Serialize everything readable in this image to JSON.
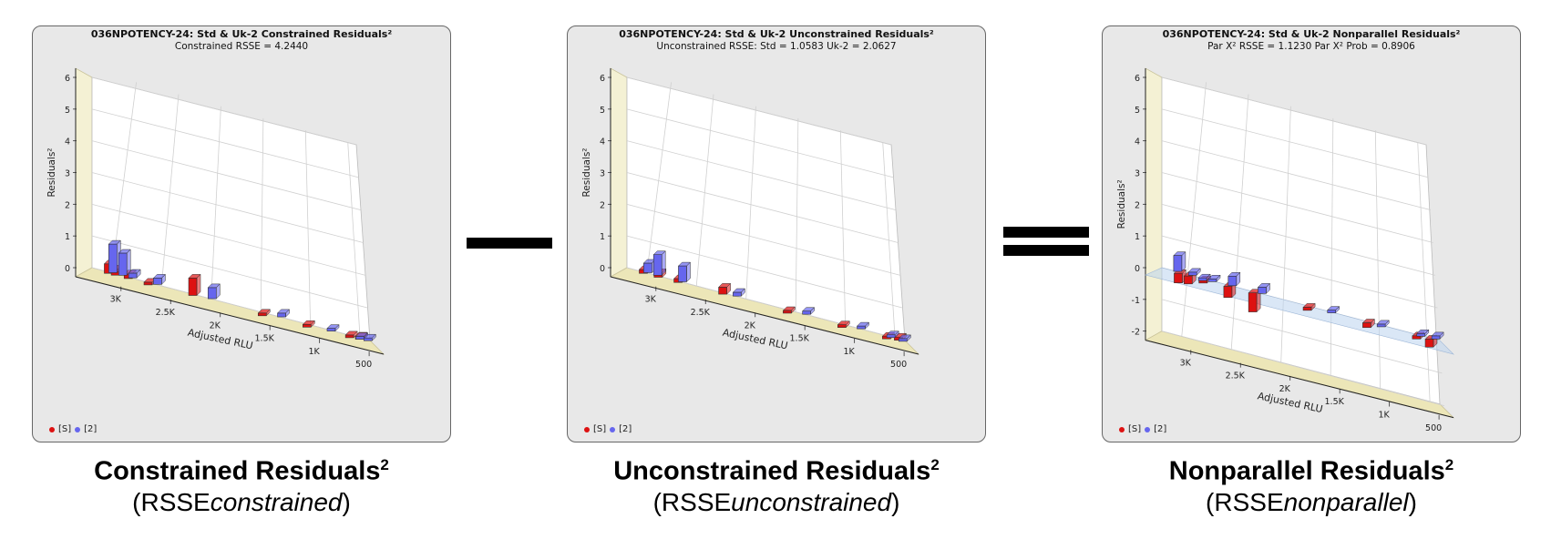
{
  "panels": [
    {
      "title": "036NPOTENCY-24: Std & Uk-2  Constrained Residuals²",
      "subtitle": "Constrained RSSE = 4.2440",
      "ylabel": "Residuals²",
      "xlabel": "Adjusted RLU",
      "legend": [
        "[S]",
        "[2]"
      ],
      "caption_main": "Constrained Residuals",
      "caption_sup": "2",
      "caption_paren_open": "(RSSE",
      "caption_italic": "constrained",
      "caption_paren_close": ")"
    },
    {
      "title": "036NPOTENCY-24: Std & Uk-2  Unconstrained Residuals²",
      "subtitle": "Unconstrained RSSE: Std = 1.0583  Uk-2 = 2.0627",
      "ylabel": "Residuals²",
      "xlabel": "Adjusted RLU",
      "legend": [
        "[S]",
        "[2]"
      ],
      "caption_main": "Unconstrained Residuals",
      "caption_sup": "2",
      "caption_paren_open": "(RSSE",
      "caption_italic": "unconstrained",
      "caption_paren_close": ")"
    },
    {
      "title": "036NPOTENCY-24: Std & Uk-2  Nonparallel Residuals²",
      "subtitle": "Par X² RSSE = 1.1230 Par X² Prob = 0.8906",
      "ylabel": "Residuals²",
      "xlabel": "Adjusted RLU",
      "legend": [
        "[S]",
        "[2]"
      ],
      "caption_main": "Nonparallel Residuals",
      "caption_sup": "2",
      "caption_paren_open": "(RSSE",
      "caption_italic": "nonparallel",
      "caption_paren_close": ")"
    }
  ],
  "colors": {
    "S": "#dd1111",
    "U": "#6666ee",
    "wall": "#f4f1d4",
    "floor": "#ece6b8",
    "zero_plane": "#bcd4ee"
  },
  "operators": [
    "minus",
    "equals"
  ],
  "chart_data": [
    {
      "type": "bar",
      "title": "036NPOTENCY-24: Std & Uk-2  Constrained Residuals²",
      "ylabel": "Residuals²",
      "xlabel": "Adjusted RLU",
      "yticks": [
        "6",
        "5",
        "4",
        "3",
        "2",
        "1",
        "0"
      ],
      "ylim": [
        0,
        6
      ],
      "xticks": [
        "3K",
        "2.5K",
        "2K",
        "1.5K",
        "1K",
        "500"
      ],
      "xlim": [
        3200,
        400
      ],
      "series": [
        {
          "name": "[S]",
          "points": [
            [
              3150,
              0.3
            ],
            [
              3080,
              0.2
            ],
            [
              2950,
              0.15
            ],
            [
              2750,
              0.05
            ],
            [
              2300,
              0.55
            ],
            [
              1600,
              0.02
            ],
            [
              1150,
              0.03
            ],
            [
              720,
              0.05
            ],
            [
              620,
              0.1
            ]
          ]
        },
        {
          "name": "[2]",
          "points": [
            [
              3050,
              0.9
            ],
            [
              2950,
              0.7
            ],
            [
              2850,
              0.15
            ],
            [
              2600,
              0.2
            ],
            [
              2050,
              0.35
            ],
            [
              1350,
              0.12
            ],
            [
              850,
              0.05
            ],
            [
              560,
              0.03
            ],
            [
              480,
              0.05
            ]
          ]
        }
      ]
    },
    {
      "type": "bar",
      "title": "036NPOTENCY-24: Std & Uk-2  Unconstrained Residuals²",
      "ylabel": "Residuals²",
      "xlabel": "Adjusted RLU",
      "yticks": [
        "6",
        "5",
        "4",
        "3",
        "2",
        "1",
        "0"
      ],
      "ylim": [
        0,
        6
      ],
      "xticks": [
        "3K",
        "2.5K",
        "2K",
        "1.5K",
        "1K",
        "500"
      ],
      "xlim": [
        3200,
        400
      ],
      "series": [
        {
          "name": "[S]",
          "points": [
            [
              3150,
              0.12
            ],
            [
              3000,
              0.15
            ],
            [
              2800,
              0.12
            ],
            [
              2350,
              0.22
            ],
            [
              1700,
              0.02
            ],
            [
              1150,
              0.02
            ],
            [
              700,
              0.03
            ],
            [
              580,
              0.1
            ]
          ]
        },
        {
          "name": "[2]",
          "points": [
            [
              3050,
              0.3
            ],
            [
              2950,
              0.65
            ],
            [
              2700,
              0.5
            ],
            [
              2150,
              0.12
            ],
            [
              1450,
              0.1
            ],
            [
              900,
              0.08
            ],
            [
              600,
              0.05
            ],
            [
              480,
              0.03
            ]
          ]
        }
      ]
    },
    {
      "type": "bar",
      "title": "036NPOTENCY-24: Std & Uk-2  Nonparallel Residuals²",
      "ylabel": "Residuals²",
      "xlabel": "Adjusted RLU",
      "yticks": [
        "6",
        "5",
        "4",
        "3",
        "2",
        "1",
        "0",
        "-1",
        "-2"
      ],
      "ylim": [
        -2,
        6
      ],
      "xticks": [
        "3K",
        "2.5K",
        "2K",
        "1.5K",
        "1K",
        "500"
      ],
      "xlim": [
        3200,
        400
      ],
      "series": [
        {
          "name": "[S]",
          "points": [
            [
              3150,
              -0.3
            ],
            [
              3050,
              -0.25
            ],
            [
              2900,
              -0.1
            ],
            [
              2650,
              -0.35
            ],
            [
              2400,
              -0.6
            ],
            [
              1850,
              -0.1
            ],
            [
              1250,
              -0.15
            ],
            [
              750,
              -0.1
            ],
            [
              620,
              -0.25
            ]
          ]
        },
        {
          "name": "[2]",
          "points": [
            [
              3100,
              0.5
            ],
            [
              2950,
              0.1
            ],
            [
              2850,
              -0.05
            ],
            [
              2750,
              0.05
            ],
            [
              2550,
              0.3
            ],
            [
              2250,
              0.2
            ],
            [
              1550,
              0.05
            ],
            [
              1050,
              0.02
            ],
            [
              650,
              0.05
            ],
            [
              500,
              0.1
            ]
          ]
        }
      ]
    }
  ]
}
